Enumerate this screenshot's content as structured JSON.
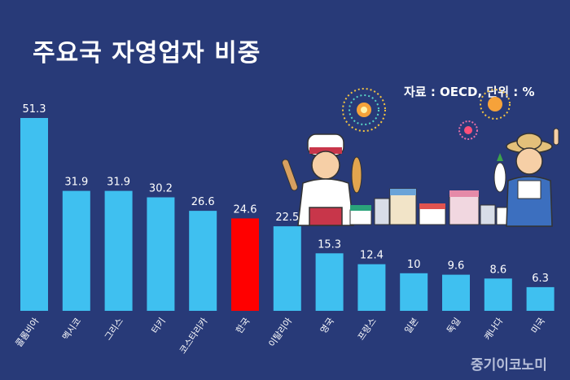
{
  "header": {
    "title": "주요국 자영업자 비중",
    "source": "자료 : OECD, 단위 : %",
    "watermark": "중기이코노미"
  },
  "colors": {
    "background": "#283a78",
    "bar": "#3fc0f0",
    "highlight": "#ff0000"
  },
  "chart_data": {
    "type": "bar",
    "title": "주요국 자영업자 비중",
    "xlabel": "",
    "ylabel": "",
    "categories": [
      "콜롬비아",
      "멕시코",
      "그리스",
      "터키",
      "코스타리카",
      "한국",
      "이탈리아",
      "영국",
      "프랑스",
      "일본",
      "독일",
      "캐나다",
      "미국"
    ],
    "values": [
      51.3,
      31.9,
      31.9,
      30.2,
      26.6,
      24.6,
      22.5,
      15.3,
      12.4,
      10,
      9.6,
      8.6,
      6.3
    ],
    "value_labels": [
      "51.3",
      "31.9",
      "31.9",
      "30.2",
      "26.6",
      "24.6",
      "22.5",
      "15.3",
      "12.4",
      "10",
      "9.6",
      "8.6",
      "6.3"
    ],
    "highlight_category": "한국",
    "ylim": [
      0,
      51.3
    ],
    "grid": false,
    "legend": "none"
  }
}
